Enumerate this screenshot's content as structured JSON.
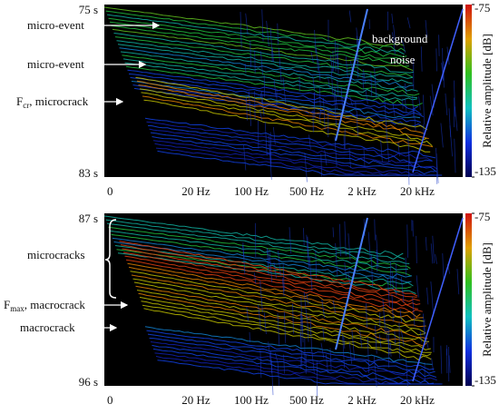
{
  "chart_data": [
    {
      "type": "waterfall",
      "time_labels": [
        "75 s",
        "83 s"
      ],
      "x_labels": [
        "0",
        "20 Hz",
        "100 Hz",
        "500 Hz",
        "2 kHz",
        "20 kHz"
      ],
      "clim": [
        -135,
        -75
      ],
      "cticks": [
        -75,
        -135
      ],
      "clabel": "Relative amplitude [dB]",
      "annotations": [
        {
          "text": "micro-event"
        },
        {
          "text": "micro-event"
        },
        {
          "text": "F",
          "sub": "cr",
          "rest": ", microcrack"
        }
      ],
      "notes": [
        "background",
        "noise"
      ]
    },
    {
      "type": "waterfall",
      "time_labels": [
        "87 s",
        "96 s"
      ],
      "x_labels": [
        "0",
        "20 Hz",
        "100 Hz",
        "500 Hz",
        "2 kHz",
        "20 kHz"
      ],
      "clim": [
        -135,
        -75
      ],
      "cticks": [
        -75,
        -135
      ],
      "clabel": "Relative amplitude [dB]",
      "annotations": [
        {
          "text": "microcracks"
        },
        {
          "text": "F",
          "sub": "max",
          "rest": ", macrocrack"
        },
        {
          "text": "macrocrack"
        }
      ]
    }
  ]
}
